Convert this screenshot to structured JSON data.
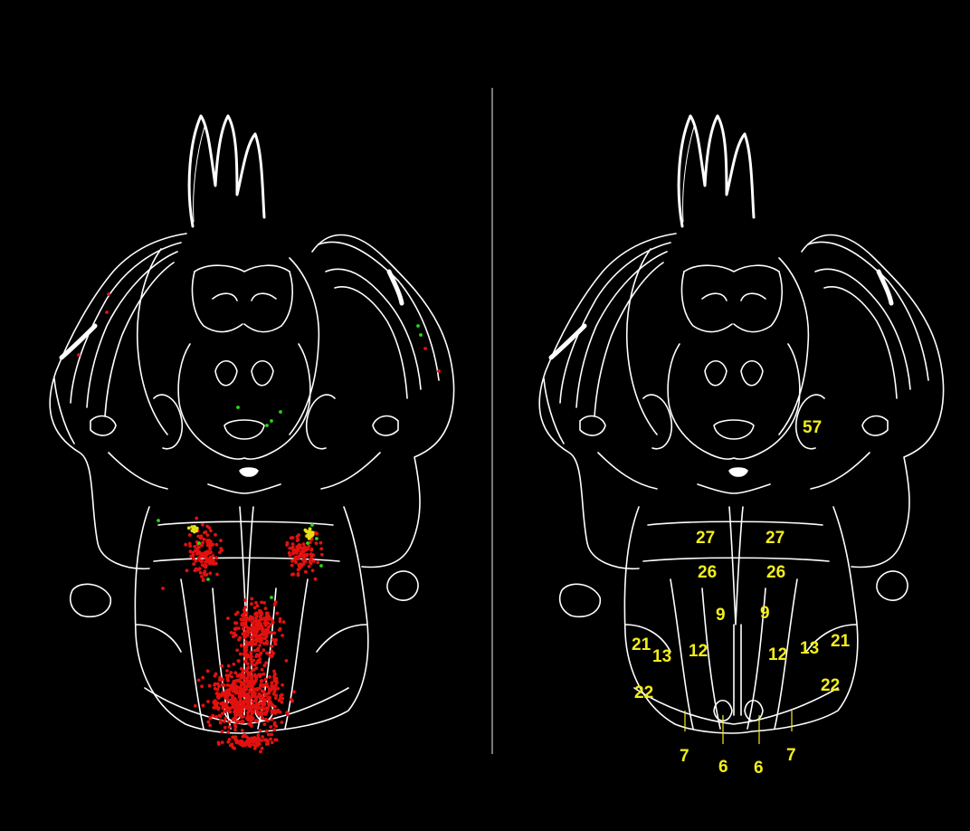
{
  "colors": {
    "background": "#000000",
    "outline": "#ffffff",
    "label": "#f2ee1a",
    "divider": "#c8c8c8",
    "dot_red": "#e3110f",
    "dot_green": "#29d81a",
    "dot_yellow": "#e6df12"
  },
  "left_panel": {
    "dots": [
      {
        "color": "red",
        "count_shown": "dense",
        "region": "hindbrain"
      },
      {
        "color": "green",
        "count_shown": "sparse",
        "region": "hindbrain"
      },
      {
        "color": "yellow",
        "count_shown": "sparse",
        "region": "hindbrain"
      }
    ]
  },
  "right_panel": {
    "labels": [
      {
        "id": "l57",
        "text": "57"
      },
      {
        "id": "l27a",
        "text": "27"
      },
      {
        "id": "l27b",
        "text": "27"
      },
      {
        "id": "l26a",
        "text": "26"
      },
      {
        "id": "l26b",
        "text": "26"
      },
      {
        "id": "l9a",
        "text": "9"
      },
      {
        "id": "l9b",
        "text": "9"
      },
      {
        "id": "l21a",
        "text": "21"
      },
      {
        "id": "l21b",
        "text": "21"
      },
      {
        "id": "l13a",
        "text": "13"
      },
      {
        "id": "l13b",
        "text": "13"
      },
      {
        "id": "l12a",
        "text": "12"
      },
      {
        "id": "l12b",
        "text": "12"
      },
      {
        "id": "l22a",
        "text": "22"
      },
      {
        "id": "l22b",
        "text": "22"
      },
      {
        "id": "l7a",
        "text": "7"
      },
      {
        "id": "l7b",
        "text": "7"
      },
      {
        "id": "l6a",
        "text": "6"
      },
      {
        "id": "l6b",
        "text": "6"
      }
    ]
  }
}
